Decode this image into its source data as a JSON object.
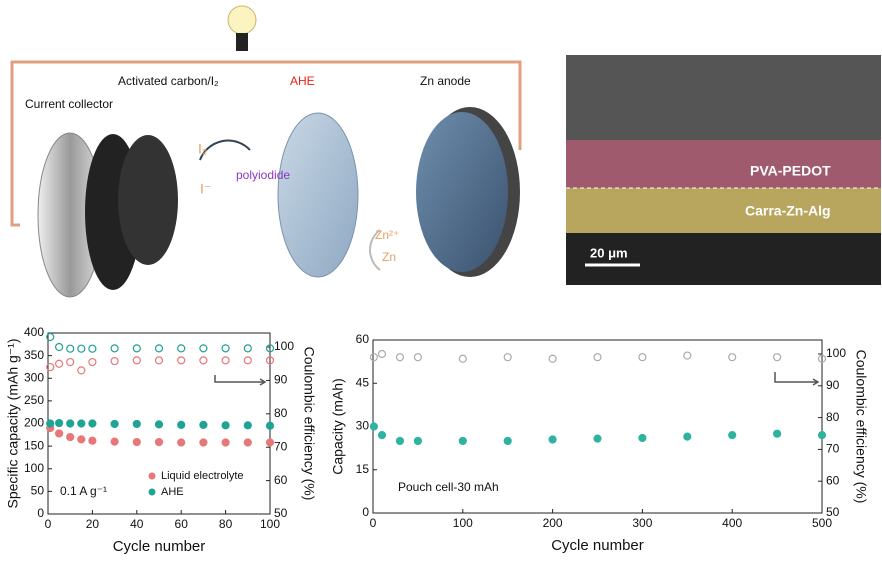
{
  "schematic": {
    "current_collector": "Current collector",
    "cathode": "Activated carbon/I₂",
    "electrolyte": "AHE",
    "anode": "Zn anode",
    "iodine": "I₂",
    "iodide": "I⁻",
    "polyiodide": "polyiodide",
    "zinc_ion": "Zn²⁺",
    "zinc": "Zn"
  },
  "sem": {
    "top_layer": "PVA-PEDOT",
    "bottom_layer": "Carra-Zn-Alg",
    "scale_bar": "20 μm"
  },
  "chart_data": [
    {
      "type": "scatter",
      "xlabel": "Cycle number",
      "ylabel": "Specific capacity (mAh g⁻¹)",
      "y2label": "Coulombic efficiency (%)",
      "annotation": "0.1 A g⁻¹",
      "x": [
        1,
        5,
        10,
        15,
        20,
        30,
        40,
        50,
        60,
        70,
        80,
        90,
        100
      ],
      "xlim": [
        0,
        100
      ],
      "xticks": [
        0,
        20,
        40,
        60,
        80,
        100
      ],
      "ylim": [
        0,
        400
      ],
      "yticks": [
        0,
        50,
        100,
        150,
        200,
        250,
        300,
        350,
        400
      ],
      "y2lim": [
        50,
        104.2
      ],
      "y2ticks": [
        50,
        60,
        70,
        80,
        90,
        100
      ],
      "legend": "lower right",
      "series": [
        {
          "name": "Liquid electrolyte",
          "color": "#e8777a",
          "filled": true,
          "values": [
            190,
            178,
            170,
            165,
            162,
            160,
            159,
            159,
            158,
            158,
            158,
            158,
            158
          ]
        },
        {
          "name": "AHE",
          "color": "#1fa394",
          "filled": true,
          "values": [
            200,
            201,
            200,
            200,
            200,
            199,
            199,
            198,
            197,
            197,
            196,
            196,
            195
          ]
        },
        {
          "color": "#e8777a",
          "filled": false,
          "axis": "y2",
          "values": [
            94,
            95,
            95.5,
            93,
            95.5,
            95.8,
            96,
            96,
            96,
            96,
            96,
            96,
            96
          ]
        },
        {
          "color": "#1fa394",
          "filled": false,
          "axis": "y2",
          "values": [
            103,
            100,
            99.5,
            99.5,
            99.5,
            99.6,
            99.6,
            99.6,
            99.6,
            99.6,
            99.6,
            99.6,
            99.6
          ]
        }
      ]
    },
    {
      "type": "scatter",
      "xlabel": "Cycle number",
      "ylabel": "Capacity (mAh)",
      "y2label": "Coulombic efficiency (%)",
      "annotation": "Pouch cell-30 mAh",
      "x": [
        1,
        10,
        30,
        50,
        100,
        150,
        200,
        250,
        300,
        350,
        400,
        450,
        500
      ],
      "xlim": [
        0,
        500
      ],
      "xticks": [
        0,
        100,
        200,
        300,
        400,
        500
      ],
      "ylim": [
        0,
        60
      ],
      "yticks": [
        0,
        15,
        30,
        45,
        60
      ],
      "y2lim": [
        50,
        104.4
      ],
      "y2ticks": [
        50,
        60,
        70,
        80,
        90,
        100
      ],
      "series": [
        {
          "color": "#2eb3a0",
          "filled": true,
          "values": [
            30,
            27,
            25,
            25,
            25,
            25,
            25.5,
            25.8,
            26,
            26.5,
            27,
            27.5,
            27
          ]
        },
        {
          "color": "#aaaaaa",
          "filled": false,
          "axis": "y2",
          "values": [
            99,
            100,
            99,
            99,
            98.5,
            99,
            98.5,
            99,
            99,
            99.5,
            99,
            99,
            98.5
          ]
        }
      ]
    }
  ]
}
